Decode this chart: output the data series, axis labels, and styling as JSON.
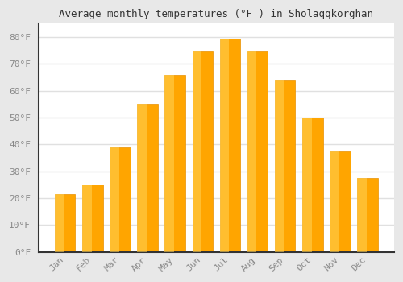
{
  "title": "Average monthly temperatures (°F ) in Sholaqqkorghan",
  "months": [
    "Jan",
    "Feb",
    "Mar",
    "Apr",
    "May",
    "Jun",
    "Jul",
    "Aug",
    "Sep",
    "Oct",
    "Nov",
    "Dec"
  ],
  "values": [
    21.5,
    25,
    39,
    55,
    66,
    75,
    79.5,
    75,
    64,
    50,
    37.5,
    27.5
  ],
  "bar_color_bottom": "#FFA500",
  "bar_color_top": "#FFD700",
  "bar_edge_color": "#E89000",
  "background_color": "#e8e8e8",
  "plot_bg_color": "#ffffff",
  "grid_color": "#e0e0e0",
  "ylim": [
    0,
    85
  ],
  "yticks": [
    0,
    10,
    20,
    30,
    40,
    50,
    60,
    70,
    80
  ],
  "ytick_labels": [
    "0°F",
    "10°F",
    "20°F",
    "30°F",
    "40°F",
    "50°F",
    "60°F",
    "70°F",
    "80°F"
  ],
  "tick_color": "#888888",
  "title_fontsize": 9,
  "tick_fontsize": 8
}
